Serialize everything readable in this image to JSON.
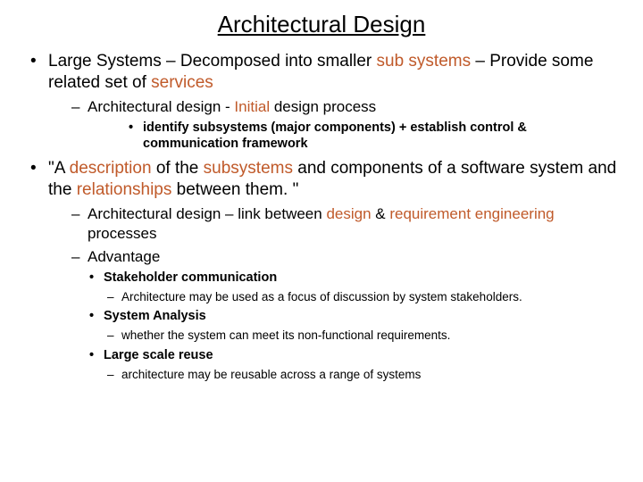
{
  "colors": {
    "text": "#000000",
    "highlight": "#c05a2a",
    "background": "#ffffff"
  },
  "title": "Architectural Design",
  "b1": {
    "p1": "Large Systems – Decomposed into smaller ",
    "h1": "sub systems",
    "p2": " – Provide some related set of ",
    "h2": "services"
  },
  "b1s1": {
    "p1": "Architectural design - ",
    "h1": "Initial",
    "p2": " design process"
  },
  "b1s1a": "identify subsystems (major components) + establish control & communication framework",
  "b2": {
    "p1": "\"A ",
    "h1": "description",
    "p2": " of the ",
    "h2": "subsystems",
    "p3": " and components of a software system and the ",
    "h3": "relationships",
    "p4": " between them. \""
  },
  "b2s1": {
    "p1": "Architectural design – link between ",
    "h1": "design",
    "p2": " & ",
    "h2": "requirement engineering",
    "p3": " processes"
  },
  "b2s2": "Advantage",
  "adv1": "Stakeholder communication",
  "adv1d": "Architecture may be used as a focus of discussion by system stakeholders.",
  "adv2": "System Analysis",
  "adv2d": "whether the system can meet its non-functional requirements.",
  "adv3": "Large scale reuse",
  "adv3d": "architecture may be reusable across a range of systems"
}
